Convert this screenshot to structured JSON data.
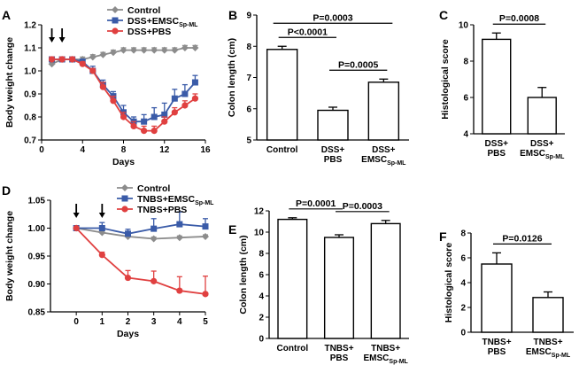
{
  "chart_data": [
    {
      "panel": "A",
      "type": "line",
      "ylabel": "Body weight change",
      "xlabel": "Days",
      "xlim": [
        0,
        16
      ],
      "ylim": [
        0.7,
        1.2
      ],
      "xticks": [
        0,
        4,
        8,
        12,
        16
      ],
      "yticks": [
        0.7,
        0.8,
        0.9,
        1.0,
        1.1,
        1.2
      ],
      "ytick_labels": [
        "0.7",
        "0.8",
        "0.9",
        "1.0",
        "1.1",
        "1.2"
      ],
      "arrows_at": [
        1,
        2
      ],
      "x": [
        1,
        2,
        3,
        4,
        5,
        6,
        7,
        8,
        9,
        10,
        11,
        12,
        13,
        14,
        15
      ],
      "series": [
        {
          "name": "Control",
          "color": "#8c8c8c",
          "marker": "diamond",
          "values": [
            1.03,
            1.05,
            1.05,
            1.05,
            1.06,
            1.07,
            1.08,
            1.09,
            1.09,
            1.09,
            1.09,
            1.09,
            1.09,
            1.1,
            1.1
          ],
          "err": [
            0.01,
            0.01,
            0.01,
            0.01,
            0.01,
            0.01,
            0.01,
            0.01,
            0.01,
            0.01,
            0.01,
            0.01,
            0.01,
            0.01,
            0.01
          ]
        },
        {
          "name": "DSS+EMSC",
          "sub": "Sp-ML",
          "color": "#3a5ba8",
          "marker": "square",
          "values": [
            1.05,
            1.05,
            1.05,
            1.04,
            1.0,
            0.94,
            0.89,
            0.82,
            0.78,
            0.78,
            0.8,
            0.81,
            0.88,
            0.9,
            0.95
          ],
          "err": [
            0.01,
            0.01,
            0.01,
            0.01,
            0.02,
            0.02,
            0.02,
            0.03,
            0.02,
            0.03,
            0.04,
            0.05,
            0.04,
            0.04,
            0.03
          ]
        },
        {
          "name": "DSS+PBS",
          "color": "#e04040",
          "marker": "circle",
          "values": [
            1.05,
            1.05,
            1.05,
            1.03,
            1.0,
            0.93,
            0.87,
            0.8,
            0.76,
            0.74,
            0.74,
            0.78,
            0.82,
            0.85,
            0.88
          ],
          "err": [
            0.01,
            0.01,
            0.01,
            0.01,
            0.01,
            0.02,
            0.02,
            0.02,
            0.02,
            0.02,
            0.02,
            0.02,
            0.02,
            0.02,
            0.02
          ]
        }
      ]
    },
    {
      "panel": "B",
      "type": "bar",
      "ylabel": "Colon length (cm)",
      "ylim": [
        5,
        9
      ],
      "yticks": [
        5,
        6,
        7,
        8,
        9
      ],
      "categories": [
        [
          "Control"
        ],
        [
          "DSS+",
          "PBS"
        ],
        [
          "DSS+",
          "EMSC"
        ]
      ],
      "category_sub": [
        "",
        "",
        "Sp-ML"
      ],
      "values": [
        7.9,
        5.95,
        6.85
      ],
      "err": [
        0.1,
        0.1,
        0.1
      ],
      "comparisons": [
        {
          "from": 0,
          "to": 2,
          "label": "P=0.0003"
        },
        {
          "from": 0,
          "to": 1,
          "label": "P<0.0001"
        },
        {
          "from": 1,
          "to": 2,
          "label": "P=0.0005"
        }
      ]
    },
    {
      "panel": "C",
      "type": "bar",
      "ylabel": "Histological score",
      "ylim": [
        4,
        10
      ],
      "yticks": [
        4,
        6,
        8,
        10
      ],
      "categories": [
        [
          "DSS+",
          "PBS"
        ],
        [
          "DSS+",
          "EMSC"
        ]
      ],
      "category_sub": [
        "",
        "Sp-ML"
      ],
      "values": [
        9.2,
        6.0
      ],
      "err": [
        0.35,
        0.55
      ],
      "comparisons": [
        {
          "from": 0,
          "to": 1,
          "label": "P=0.0008"
        }
      ]
    },
    {
      "panel": "D",
      "type": "line",
      "ylabel": "Body weight change",
      "xlabel": "Days",
      "xlim": [
        -1,
        5
      ],
      "ylim": [
        0.85,
        1.05
      ],
      "xticks": [
        0,
        1,
        2,
        3,
        4,
        5
      ],
      "yticks": [
        0.85,
        0.9,
        0.95,
        1.0,
        1.05
      ],
      "ytick_labels": [
        "0.85",
        "0.90",
        "0.95",
        "1.00",
        "1.05"
      ],
      "arrows_at": [
        0,
        1
      ],
      "x": [
        0,
        1,
        2,
        3,
        4,
        5
      ],
      "series": [
        {
          "name": "Control",
          "color": "#8c8c8c",
          "marker": "diamond",
          "values": [
            1.0,
            0.992,
            0.985,
            0.981,
            0.983,
            0.985
          ],
          "err": [
            0.002,
            0.004,
            0.003,
            0.003,
            0.003,
            0.003
          ]
        },
        {
          "name": "TNBS+EMSC",
          "sub": "Sp-ML",
          "color": "#3a5ba8",
          "marker": "square",
          "values": [
            1.0,
            1.0,
            0.99,
            0.999,
            1.007,
            1.003
          ],
          "err": [
            0.002,
            0.01,
            0.008,
            0.018,
            0.022,
            0.014
          ]
        },
        {
          "name": "TNBS+PBS",
          "color": "#e04040",
          "marker": "circle",
          "values": [
            1.0,
            0.952,
            0.911,
            0.905,
            0.888,
            0.882
          ],
          "err": [
            0.002,
            0.005,
            0.013,
            0.018,
            0.025,
            0.032
          ]
        }
      ]
    },
    {
      "panel": "E",
      "type": "bar",
      "ylabel": "Colon length (cm)",
      "ylim": [
        0,
        12
      ],
      "yticks": [
        0,
        2,
        4,
        6,
        8,
        10,
        12
      ],
      "categories": [
        [
          "Control"
        ],
        [
          "TNBS+",
          "PBS"
        ],
        [
          "TNBS+",
          "EMSC"
        ]
      ],
      "category_sub": [
        "",
        "",
        "Sp-ML"
      ],
      "values": [
        11.2,
        9.5,
        10.8
      ],
      "err": [
        0.15,
        0.25,
        0.3
      ],
      "comparisons": [
        {
          "from": 0,
          "to": 1,
          "label": "P=0.0001"
        },
        {
          "from": 1,
          "to": 2,
          "label": "P=0.0003"
        }
      ]
    },
    {
      "panel": "F",
      "type": "bar",
      "ylabel": "Histological score",
      "ylim": [
        0,
        8
      ],
      "yticks": [
        0,
        2,
        4,
        6,
        8
      ],
      "categories": [
        [
          "TNBS+",
          "PBS"
        ],
        [
          "TNBS+",
          "EMSC"
        ]
      ],
      "category_sub": [
        "",
        "Sp-ML"
      ],
      "values": [
        5.5,
        2.8
      ],
      "err": [
        0.9,
        0.45
      ],
      "comparisons": [
        {
          "from": 0,
          "to": 1,
          "label": "P=0.0126"
        }
      ]
    }
  ]
}
